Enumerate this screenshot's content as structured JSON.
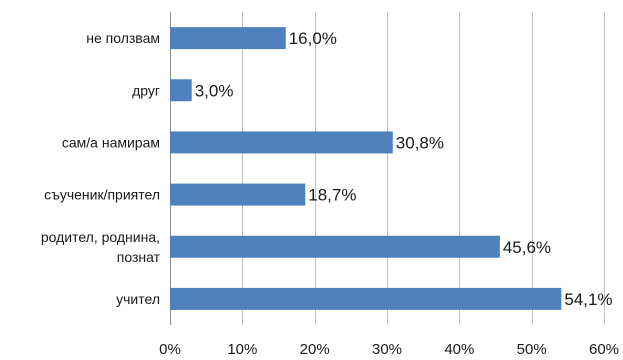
{
  "chart_data": {
    "type": "bar",
    "orientation": "horizontal",
    "categories": [
      [
        "не ползвам"
      ],
      [
        "друг"
      ],
      [
        "сам/а намирам"
      ],
      [
        "съученик/приятел"
      ],
      [
        "родител, роднина,",
        "познат"
      ],
      [
        "учител"
      ]
    ],
    "values": [
      16.0,
      3.0,
      30.8,
      18.7,
      45.6,
      54.1
    ],
    "data_labels": [
      "16,0%",
      "3,0%",
      "30,8%",
      "18,7%",
      "45,6%",
      "54,1%"
    ],
    "xlim": [
      0,
      60
    ],
    "x_ticks": [
      0,
      10,
      20,
      30,
      40,
      50,
      60
    ],
    "x_tick_labels": [
      "0%",
      "10%",
      "20%",
      "30%",
      "40%",
      "50%",
      "60%"
    ],
    "grid": "vertical",
    "legend": "none",
    "bar_color": "#4f81bd",
    "grid_color": "#bfbfbf"
  }
}
